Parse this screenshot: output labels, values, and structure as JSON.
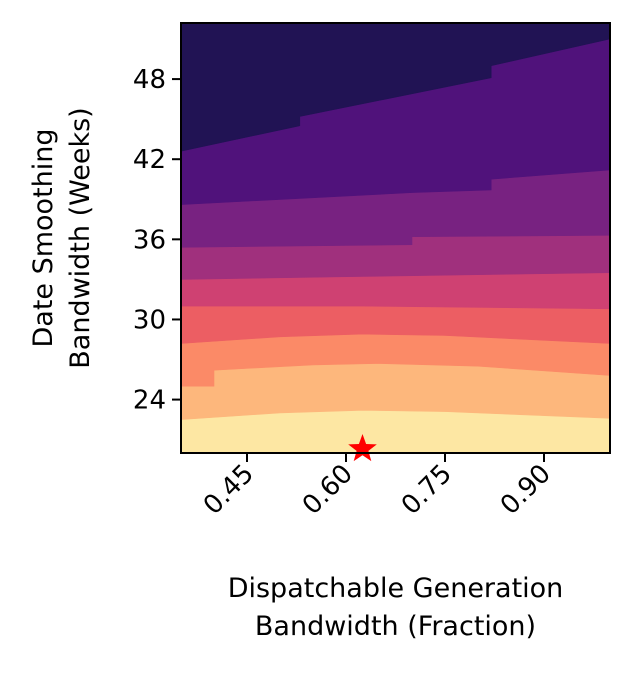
{
  "chart_data": {
    "type": "contour",
    "title": "",
    "xlabel": [
      "Dispatchable Generation",
      "Bandwidth (Fraction)"
    ],
    "ylabel": [
      "Date Smoothing",
      "Bandwidth (Weeks)"
    ],
    "xlim": [
      0.35,
      1.0
    ],
    "ylim": [
      20.0,
      52.2
    ],
    "xticks": [
      {
        "value": 0.45,
        "label": "0.45"
      },
      {
        "value": 0.6,
        "label": "0.60"
      },
      {
        "value": 0.75,
        "label": "0.75"
      },
      {
        "value": 0.9,
        "label": "0.90"
      }
    ],
    "yticks": [
      {
        "value": 24,
        "label": "24"
      },
      {
        "value": 30,
        "label": "30"
      },
      {
        "value": 36,
        "label": "36"
      },
      {
        "value": 42,
        "label": "42"
      },
      {
        "value": 48,
        "label": "48"
      }
    ],
    "colormap": "magma",
    "grid": false,
    "legend": "none",
    "optimum_marker": {
      "x": 0.625,
      "y": 20.3,
      "shape": "star",
      "color": "#ff0000"
    },
    "contour_levels": [
      {
        "level": 1,
        "color": "#fde7a3",
        "boundary": [
          [
            0.35,
            20.8
          ],
          [
            0.5,
            21.0
          ],
          [
            0.625,
            21.1
          ],
          [
            0.75,
            21.0
          ],
          [
            1.0,
            20.6
          ]
        ]
      },
      {
        "level": 2,
        "color": "#fdb77c",
        "boundary": [
          [
            0.35,
            22.5
          ],
          [
            0.5,
            23.0
          ],
          [
            0.625,
            23.2
          ],
          [
            0.75,
            23.1
          ],
          [
            1.0,
            22.6
          ]
        ]
      },
      {
        "level": 3,
        "color": "#fb8a67",
        "boundary": [
          [
            0.35,
            25.0
          ],
          [
            0.4,
            25.0
          ],
          [
            0.4,
            26.2
          ],
          [
            0.55,
            26.6
          ],
          [
            0.65,
            26.7
          ],
          [
            0.8,
            26.5
          ],
          [
            1.0,
            25.8
          ]
        ]
      },
      {
        "level": 4,
        "color": "#ec5e63",
        "boundary": [
          [
            0.35,
            28.2
          ],
          [
            0.5,
            28.7
          ],
          [
            0.625,
            28.9
          ],
          [
            0.75,
            28.8
          ],
          [
            1.0,
            28.2
          ]
        ]
      },
      {
        "level": 5,
        "color": "#cf4172",
        "boundary": [
          [
            0.35,
            31.0
          ],
          [
            0.625,
            31.0
          ],
          [
            1.0,
            30.8
          ]
        ]
      },
      {
        "level": 6,
        "color": "#a0307d",
        "boundary": [
          [
            0.35,
            33.0
          ],
          [
            0.6,
            33.2
          ],
          [
            1.0,
            33.5
          ]
        ]
      },
      {
        "level": 7,
        "color": "#782281",
        "boundary": [
          [
            0.35,
            35.4
          ],
          [
            0.7,
            35.6
          ],
          [
            0.7,
            36.2
          ],
          [
            1.0,
            36.3
          ]
        ]
      },
      {
        "level": 8,
        "color": "#50127b",
        "boundary": [
          [
            0.35,
            38.6
          ],
          [
            0.7,
            39.5
          ],
          [
            0.82,
            39.7
          ],
          [
            0.82,
            40.5
          ],
          [
            1.0,
            41.2
          ]
        ]
      },
      {
        "level": 9,
        "color": "#211354",
        "boundary": [
          [
            0.35,
            42.6
          ],
          [
            0.53,
            44.5
          ],
          [
            0.53,
            45.2
          ],
          [
            0.82,
            48.1
          ],
          [
            0.82,
            49.0
          ],
          [
            1.0,
            51.0
          ]
        ]
      }
    ]
  }
}
